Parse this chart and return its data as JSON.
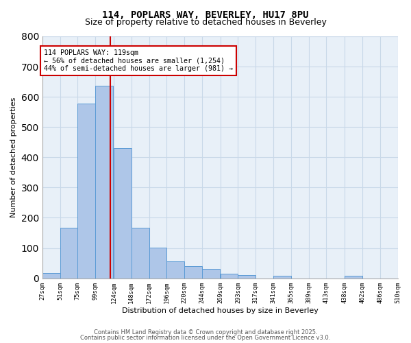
{
  "title1": "114, POPLARS WAY, BEVERLEY, HU17 8PU",
  "title2": "Size of property relative to detached houses in Beverley",
  "xlabel": "Distribution of detached houses by size in Beverley",
  "ylabel": "Number of detached properties",
  "bar_color": "#aec6e8",
  "bar_edge_color": "#5b9bd5",
  "bar_heights": [
    17,
    167,
    577,
    637,
    430,
    168,
    102,
    56,
    40,
    30,
    14,
    10,
    0,
    8,
    0,
    0,
    0,
    7
  ],
  "bin_left": [
    27,
    51,
    75,
    99,
    124,
    148,
    172,
    196,
    220,
    244,
    269,
    293,
    317,
    341,
    365,
    389,
    413,
    438
  ],
  "bin_width": 24,
  "tick_positions": [
    27,
    51,
    75,
    99,
    124,
    148,
    172,
    196,
    220,
    244,
    269,
    293,
    317,
    341,
    365,
    389,
    413,
    438,
    462,
    486,
    510
  ],
  "tick_labels": [
    "27sqm",
    "51sqm",
    "75sqm",
    "99sqm",
    "124sqm",
    "148sqm",
    "172sqm",
    "196sqm",
    "220sqm",
    "244sqm",
    "269sqm",
    "293sqm",
    "317sqm",
    "341sqm",
    "365sqm",
    "389sqm",
    "413sqm",
    "438sqm",
    "462sqm",
    "486sqm",
    "510sqm"
  ],
  "property_size": 119,
  "red_line_color": "#cc0000",
  "annotation_text": "114 POPLARS WAY: 119sqm\n← 56% of detached houses are smaller (1,254)\n44% of semi-detached houses are larger (981) →",
  "annotation_box_color": "white",
  "annotation_box_edge_color": "#cc0000",
  "ylim": [
    0,
    800
  ],
  "yticks": [
    0,
    100,
    200,
    300,
    400,
    500,
    600,
    700,
    800
  ],
  "xlim": [
    27,
    510
  ],
  "grid_color": "#c8d8e8",
  "background_color": "#e8f0f8",
  "footer1": "Contains HM Land Registry data © Crown copyright and database right 2025.",
  "footer2": "Contains public sector information licensed under the Open Government Licence v3.0."
}
